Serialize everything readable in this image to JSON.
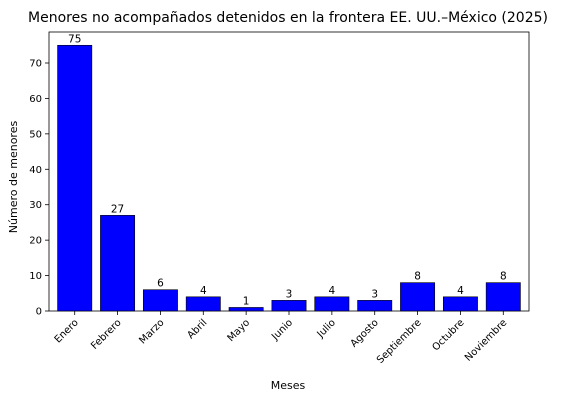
{
  "chart_data": {
    "type": "bar",
    "title": "Menores no acompañados detenidos en la frontera EE. UU.–México (2025)",
    "xlabel": "Meses",
    "ylabel": "Número de menores",
    "categories": [
      "Enero",
      "Febrero",
      "Marzo",
      "Abril",
      "Mayo",
      "Junio",
      "Julio",
      "Agosto",
      "Septiembre",
      "Octubre",
      "Noviembre"
    ],
    "values": [
      75,
      27,
      6,
      4,
      1,
      3,
      4,
      3,
      8,
      4,
      8
    ],
    "data_labels": [
      "75",
      "27",
      "6",
      "4",
      "1",
      "3",
      "4",
      "3",
      "8",
      "4",
      "8"
    ],
    "ylim": [
      0,
      78.75
    ],
    "yticks": [
      0,
      10,
      20,
      30,
      40,
      50,
      60,
      70
    ],
    "bar_color": "#0000ff",
    "bar_edge_color": "#000000",
    "grid": false,
    "legend": "none"
  }
}
